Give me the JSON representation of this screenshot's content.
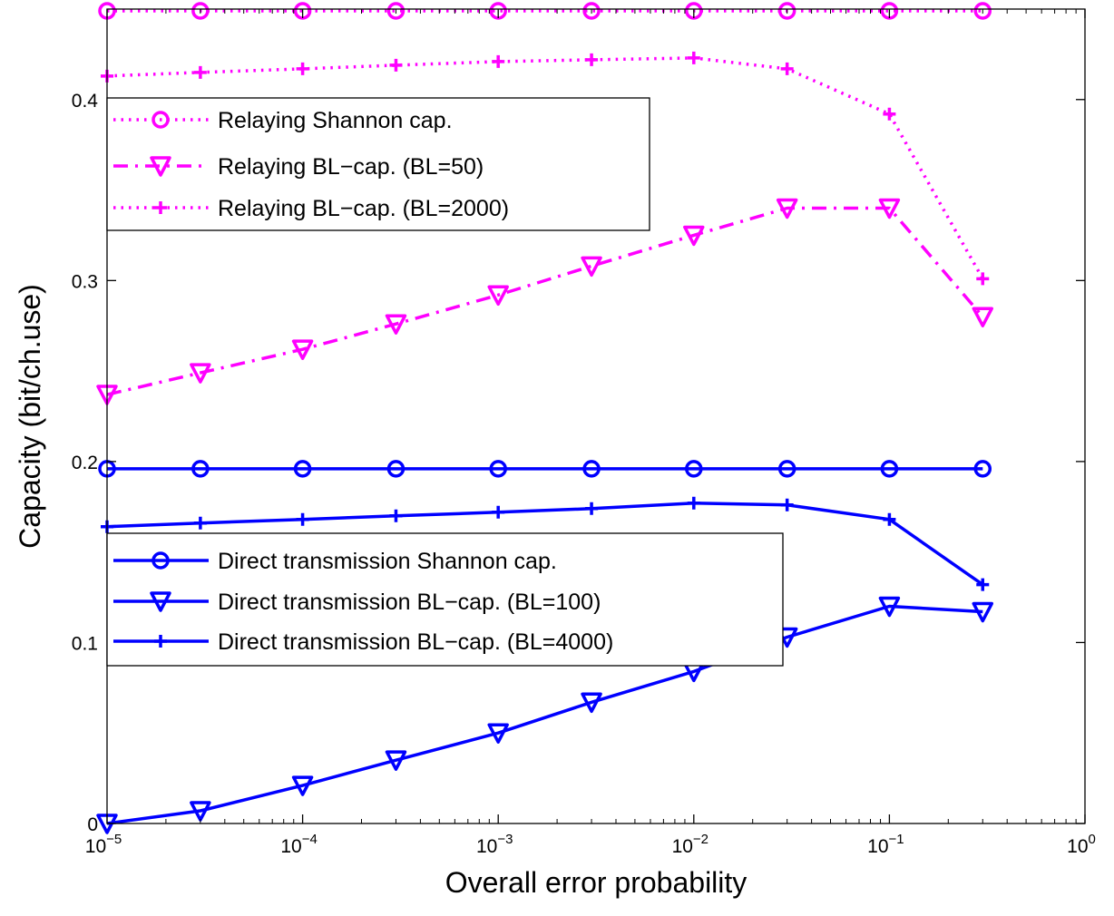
{
  "chart_data": {
    "type": "line",
    "title": "",
    "xlabel": "Overall error probability",
    "ylabel": "Capacity (bit/ch.use)",
    "xscale": "log",
    "xlim": [
      1e-05,
      1
    ],
    "ylim": [
      0,
      0.45
    ],
    "grid": false,
    "x_ticks": [
      {
        "value": 1e-05,
        "base": "10",
        "exp": "−5"
      },
      {
        "value": 0.0001,
        "base": "10",
        "exp": "−4"
      },
      {
        "value": 0.001,
        "base": "10",
        "exp": "−3"
      },
      {
        "value": 0.01,
        "base": "10",
        "exp": "−2"
      },
      {
        "value": 0.1,
        "base": "10",
        "exp": "−1"
      },
      {
        "value": 1,
        "base": "10",
        "exp": "0"
      }
    ],
    "y_ticks": [
      {
        "value": 0,
        "label": "0"
      },
      {
        "value": 0.1,
        "label": "0.1"
      },
      {
        "value": 0.2,
        "label": "0.2"
      },
      {
        "value": 0.3,
        "label": "0.3"
      },
      {
        "value": 0.4,
        "label": "0.4"
      }
    ],
    "x": [
      1e-05,
      3e-05,
      0.0001,
      0.0003,
      0.001,
      0.003,
      0.01,
      0.03,
      0.1,
      0.3
    ],
    "series": [
      {
        "name": "Relaying Shannon cap.",
        "color": "#ff00ff",
        "line": "dotted",
        "marker": "circle",
        "values": [
          0.449,
          0.449,
          0.449,
          0.449,
          0.449,
          0.449,
          0.449,
          0.449,
          0.449,
          0.449
        ]
      },
      {
        "name": "Relaying BL−cap. (BL=50)",
        "color": "#ff00ff",
        "line": "dashdot",
        "marker": "triangle-down",
        "values": [
          0.237,
          0.249,
          0.262,
          0.276,
          0.292,
          0.308,
          0.325,
          0.34,
          0.34,
          0.28
        ]
      },
      {
        "name": "Relaying BL−cap. (BL=2000)",
        "color": "#ff00ff",
        "line": "dotted",
        "marker": "plus",
        "values": [
          0.413,
          0.415,
          0.417,
          0.419,
          0.421,
          0.422,
          0.423,
          0.417,
          0.392,
          0.301
        ]
      },
      {
        "name": "Direct transmission Shannon cap.",
        "color": "#0000ff",
        "line": "solid",
        "marker": "circle",
        "values": [
          0.196,
          0.196,
          0.196,
          0.196,
          0.196,
          0.196,
          0.196,
          0.196,
          0.196,
          0.196
        ]
      },
      {
        "name": "Direct transmission BL−cap. (BL=100)",
        "color": "#0000ff",
        "line": "solid",
        "marker": "triangle-down",
        "values": [
          0.0,
          0.007,
          0.021,
          0.035,
          0.05,
          0.067,
          0.084,
          0.103,
          0.12,
          0.117
        ]
      },
      {
        "name": "Direct transmission BL−cap. (BL=4000)",
        "color": "#0000ff",
        "line": "solid",
        "marker": "plus",
        "values": [
          0.164,
          0.166,
          0.168,
          0.17,
          0.172,
          0.174,
          0.177,
          0.176,
          0.168,
          0.132
        ]
      }
    ],
    "legends": [
      {
        "placement": "upper-left",
        "series_indices": [
          0,
          1,
          2
        ]
      },
      {
        "placement": "center-left",
        "series_indices": [
          3,
          4,
          5
        ]
      }
    ]
  }
}
